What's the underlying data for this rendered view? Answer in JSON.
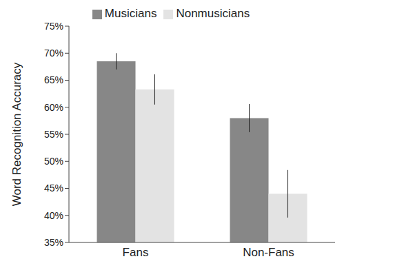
{
  "chart_data": {
    "type": "bar",
    "categories": [
      "Fans",
      "Non-Fans"
    ],
    "series": [
      {
        "name": "Musicians",
        "color": "#878787",
        "values": [
          68.5,
          58.0
        ],
        "errors": [
          1.5,
          2.6
        ]
      },
      {
        "name": "Nonmusicians",
        "color": "#e3e3e3",
        "values": [
          63.3,
          44.0
        ],
        "errors": [
          2.8,
          4.4
        ]
      }
    ],
    "y_label": "Word Recognition Accuracy",
    "ylim": [
      35,
      75
    ],
    "yticks": [
      {
        "value": 35,
        "label": "35%"
      },
      {
        "value": 40,
        "label": "40%"
      },
      {
        "value": 45,
        "label": "45%"
      },
      {
        "value": 50,
        "label": "50%"
      },
      {
        "value": 55,
        "label": "55%"
      },
      {
        "value": 60,
        "label": "60%"
      },
      {
        "value": 65,
        "label": "65%"
      },
      {
        "value": 70,
        "label": "70%"
      },
      {
        "value": 75,
        "label": "75%"
      }
    ],
    "grid": false,
    "legend": "top"
  }
}
